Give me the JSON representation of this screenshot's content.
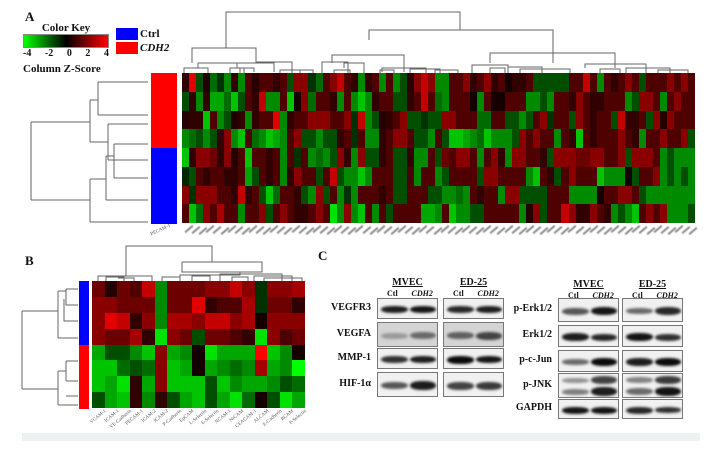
{
  "figure": {
    "panels": [
      "A",
      "B",
      "C"
    ]
  },
  "panel_a": {
    "letter": "A",
    "color_key": {
      "title": "Color Key",
      "ticks": [
        "-4",
        "-2",
        "0",
        "2",
        "4"
      ],
      "axis_label": "Column Z-Score",
      "colors": {
        "low": "#00ff00",
        "mid": "#000000",
        "high": "#ff0000"
      }
    },
    "legend": [
      {
        "label": "Ctrl",
        "color": "#0000ff",
        "italic": false
      },
      {
        "label": "CDH2",
        "color": "#ff0000",
        "italic": true
      }
    ],
    "row_groups": [
      "CDH2",
      "CDH2",
      "CDH2",
      "CDH2",
      "Ctrl",
      "Ctrl",
      "Ctrl",
      "Ctrl"
    ],
    "first_column_label": "PECAM-1",
    "matrix": [
      [
        0.5,
        3.5,
        -1,
        0.2,
        -1.5,
        -0.5,
        -2,
        0.5,
        -2,
        1,
        0.3,
        1,
        1,
        0.5,
        1,
        -1,
        2,
        2,
        -0.5,
        -1.5,
        1,
        2,
        3,
        1,
        0.5,
        -2,
        0.5,
        1,
        -2,
        1,
        -2,
        -1,
        0.3,
        2,
        3,
        2,
        -2,
        -2,
        1,
        1,
        2,
        0.5,
        1,
        2,
        0.5,
        1,
        0,
        0.5,
        0.5,
        1,
        -1,
        -1,
        -1,
        -1,
        -1,
        1,
        1,
        3,
        1,
        -2,
        1,
        0.5,
        1,
        2,
        1,
        -1,
        1,
        1,
        1,
        2,
        1,
        2,
        1
      ],
      [
        -1,
        0.5,
        -2,
        0.5,
        -2.5,
        -2.5,
        -1.5,
        -3,
        -1,
        1,
        0.5,
        3,
        -2,
        -2,
        1,
        -3,
        0,
        2,
        -1.5,
        1,
        1,
        0.5,
        -2,
        1,
        -2,
        -3,
        -2,
        0.5,
        1,
        1,
        -1,
        -1,
        0.5,
        1,
        3,
        1,
        -1.5,
        -2,
        1,
        1,
        1,
        0,
        -2,
        1,
        0,
        0,
        1,
        1,
        1,
        -2,
        -2,
        -1,
        -2,
        1,
        1,
        0.5,
        2,
        1,
        0.5,
        0.5,
        1,
        1,
        1,
        -2,
        -1,
        2,
        2,
        1,
        -2,
        1,
        2,
        1,
        1
      ],
      [
        0.3,
        0.5,
        0.5,
        -3,
        1,
        -2,
        -1,
        0.2,
        0.5,
        -2,
        0.5,
        1,
        1,
        3.5,
        -2,
        0.5,
        1,
        1,
        2,
        2,
        2,
        1,
        1,
        2,
        -0.5,
        3,
        -2,
        -1,
        0.3,
        0.5,
        1,
        2,
        -1,
        -1,
        -0.5,
        -1,
        -1,
        2,
        2,
        1,
        1,
        1,
        -1.5,
        -1.5,
        1,
        1,
        -1,
        -1,
        -2,
        -1,
        1,
        2,
        -0.5,
        1,
        1,
        -1,
        2,
        1,
        0.5,
        1,
        1,
        -1,
        3,
        0.5,
        0.5,
        1,
        -1,
        2,
        0.3,
        2,
        1,
        1,
        1
      ],
      [
        -2,
        -1.5,
        -1,
        -2,
        -1,
        0.5,
        2,
        -2,
        -3,
        1,
        -1.5,
        -2,
        -3,
        -2.5,
        -2,
        1,
        2,
        -1,
        -1,
        -2,
        -1,
        -1,
        0.5,
        1,
        -0.5,
        1,
        -2,
        -2,
        0.5,
        1,
        2,
        2,
        1,
        -1,
        -1,
        -2,
        1,
        -1,
        -3,
        -3,
        -2.5,
        -2,
        -1.5,
        -3,
        -2,
        -2,
        -2,
        -1,
        2,
        1,
        2,
        1,
        1,
        -2,
        1,
        0.5,
        -3,
        1,
        0.5,
        1,
        1,
        1,
        2,
        1,
        0.5,
        -2,
        1,
        1,
        2,
        1,
        1,
        2,
        -1
      ],
      [
        -3,
        0.5,
        2,
        2,
        1.5,
        0.5,
        2,
        0.3,
        1,
        -3,
        1,
        1,
        0.5,
        1,
        -2,
        1,
        -0.5,
        1,
        -2,
        -1.5,
        -2,
        -1,
        2,
        0.5,
        -2,
        2,
        -1,
        -1,
        0.5,
        1,
        -1,
        -1,
        0.5,
        -2,
        -2,
        1,
        -1,
        1.5,
        1,
        2,
        2,
        1,
        -2,
        1,
        2,
        0.5,
        -2,
        2,
        2,
        1,
        1,
        0.5,
        -1,
        2,
        2,
        2,
        1.5,
        1.5,
        2,
        2,
        1,
        1,
        2,
        -1,
        2,
        2,
        2,
        1,
        -2,
        -1,
        -2,
        -2,
        -2
      ],
      [
        -0.3,
        -1,
        1,
        0.5,
        1,
        1,
        0.5,
        0.5,
        1,
        -2.5,
        -1,
        1,
        0.5,
        1,
        -2,
        0.5,
        2,
        1,
        1,
        -1,
        1,
        3,
        -1,
        -2,
        -2,
        -3,
        -2,
        1,
        1,
        1,
        -1,
        -1,
        1,
        -2,
        1,
        1,
        -2,
        -1,
        1,
        1,
        1,
        1,
        -1,
        2,
        2,
        1,
        1,
        1,
        1,
        -2,
        -3,
        1,
        0.5,
        -1,
        1,
        2,
        1,
        1,
        1,
        -3,
        -2,
        -2,
        -2,
        0,
        -1,
        1,
        1,
        2,
        -2,
        -1,
        -2,
        -1,
        -2
      ],
      [
        2,
        -0.5,
        2,
        2,
        2,
        1,
        1,
        0.5,
        3,
        0.5,
        1,
        -1,
        -3,
        -1.5,
        1,
        1,
        0.5,
        -1,
        -2,
        2,
        -1,
        1,
        -2,
        -0.5,
        -2,
        1,
        1,
        1,
        0.5,
        1,
        -1,
        -1,
        1,
        1,
        1,
        -1,
        -1,
        -2,
        -2,
        -1.5,
        -2,
        1,
        0.5,
        1,
        1,
        -2,
        2,
        2,
        -1,
        -1,
        -1,
        -1,
        1,
        1,
        1,
        -2,
        -2,
        -2,
        -2,
        0,
        1,
        1,
        2,
        2,
        1,
        -1,
        -2,
        -2,
        -2,
        -2,
        -2,
        -2,
        -2
      ],
      [
        1,
        -3,
        -1.5,
        2,
        1,
        2.5,
        1,
        1,
        -2,
        1,
        1,
        2,
        -1,
        1,
        2,
        1,
        0.5,
        0.5,
        1,
        2,
        1,
        -3.5,
        -2,
        2,
        -2,
        -3,
        1,
        -2,
        1,
        -1,
        1,
        1,
        1,
        1,
        -2.5,
        -2.5,
        -2,
        1,
        -3,
        -2,
        -2,
        -1,
        -1,
        1,
        1,
        1,
        1,
        1,
        -2,
        0.3,
        2,
        -1,
        1,
        1,
        3,
        2,
        0.5,
        0.5,
        2,
        1,
        0.5,
        -2,
        -1,
        -2,
        -3,
        1,
        2,
        1,
        2,
        -2,
        -2,
        -2,
        -1
      ]
    ]
  },
  "panel_b": {
    "letter": "B",
    "row_groups": [
      "Ctrl",
      "Ctrl",
      "Ctrl",
      "Ctrl",
      "CDH2",
      "CDH2",
      "CDH2",
      "CDH2"
    ],
    "column_labels": [
      "VCAM-1",
      "ICAM-1",
      "VE-Cadherin",
      "PECAM-1",
      "ICAM-2",
      "JCAM-2",
      "P-Cadherin",
      "EpCAM",
      "L-Selectin",
      "E-Selectin",
      "NCAM-1",
      "NrCAM",
      "CEACAM-1",
      "ALCAM",
      "E-Cadherin",
      "BCAM",
      "P-Selectin"
    ],
    "matrix": [
      [
        1.5,
        0.3,
        1.5,
        1,
        3,
        -2,
        1.5,
        1.5,
        1.5,
        2,
        2,
        3,
        2,
        -0.5,
        2,
        2,
        2.5
      ],
      [
        2,
        2,
        1.5,
        1.5,
        1.5,
        -2,
        1.5,
        1.5,
        3.5,
        0.5,
        1,
        1,
        2.5,
        -0.5,
        1.5,
        1.5,
        0.5
      ],
      [
        2,
        3.5,
        3,
        0.5,
        2,
        -2,
        2.5,
        2.5,
        2,
        3,
        3,
        2,
        2.5,
        0,
        2,
        2,
        2
      ],
      [
        2,
        1.5,
        1.5,
        2.5,
        0.5,
        -3.5,
        2,
        1.5,
        -1,
        1.5,
        1.5,
        1,
        0.5,
        -3.5,
        2,
        1,
        1.5
      ],
      [
        -2.5,
        -1,
        -1,
        -2,
        -3,
        2,
        -2.5,
        -2,
        0,
        -3.5,
        -2.5,
        -2.5,
        -2.5,
        4,
        -3,
        -2,
        0
      ],
      [
        -3,
        -3,
        -1.5,
        -1,
        -1.5,
        2,
        -3,
        -2.5,
        0,
        -2.5,
        -2,
        -1.5,
        -2,
        2.5,
        -2.5,
        -2,
        -4
      ],
      [
        -3,
        -2.5,
        -3.5,
        0.5,
        -2.5,
        2,
        -3,
        -3,
        -3,
        -1,
        -3,
        -2,
        -2.5,
        -2.5,
        -2,
        -1,
        -1.5
      ],
      [
        -1,
        -2.5,
        -3,
        0.5,
        -2,
        0.5,
        -1,
        -2.5,
        -3,
        -1,
        -2.5,
        -3.5,
        -1.5,
        0,
        -1,
        -3.5,
        -2.5
      ]
    ]
  },
  "panel_c": {
    "letter": "C",
    "left_blot": {
      "groups": [
        {
          "name": "MVEC",
          "lanes": [
            "Ctl",
            "CDH2"
          ]
        },
        {
          "name": "ED-25",
          "lanes": [
            "Ctl",
            "CDH2"
          ]
        }
      ],
      "rows": [
        {
          "label": "VEGFR3",
          "intensity": [
            [
              0.9,
              0.95
            ],
            [
              0.85,
              0.9
            ]
          ]
        },
        {
          "label": "VEGFA",
          "intensity": [
            [
              0.25,
              0.5
            ],
            [
              0.55,
              0.7
            ]
          ]
        },
        {
          "label": "MMP-1",
          "intensity": [
            [
              0.8,
              0.9
            ],
            [
              1.0,
              0.95
            ]
          ]
        },
        {
          "label": "HIF-1α",
          "intensity": [
            [
              0.6,
              0.9
            ],
            [
              0.7,
              0.75
            ]
          ]
        }
      ]
    },
    "right_blot": {
      "groups": [
        {
          "name": "MVEC",
          "lanes": [
            "Ctl",
            "CDH2"
          ]
        },
        {
          "name": "ED-25",
          "lanes": [
            "Ctl",
            "CDH2"
          ]
        }
      ],
      "rows": [
        {
          "label": "p-Erk1/2",
          "intensity": [
            [
              0.6,
              0.95
            ],
            [
              0.5,
              0.85
            ]
          ]
        },
        {
          "label": "Erk1/2",
          "intensity": [
            [
              0.9,
              0.85
            ],
            [
              0.95,
              0.8
            ]
          ]
        },
        {
          "label": "p-c-Jun",
          "intensity": [
            [
              0.5,
              1.0
            ],
            [
              0.9,
              1.0
            ]
          ]
        },
        {
          "label": "p-JNK",
          "intensity": [
            [
              0.4,
              0.9
            ],
            [
              0.5,
              0.95
            ]
          ]
        },
        {
          "label": "GAPDH",
          "intensity": [
            [
              0.95,
              0.95
            ],
            [
              0.85,
              0.8
            ]
          ]
        }
      ]
    }
  }
}
